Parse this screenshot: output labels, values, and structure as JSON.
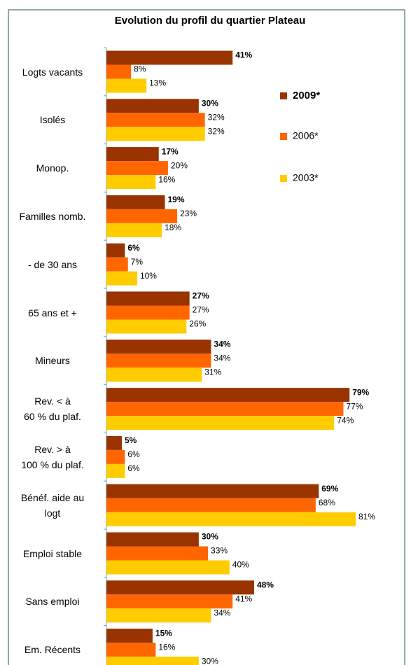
{
  "chart_data": {
    "type": "bar",
    "orientation": "horizontal",
    "title": "Evolution du profil du quartier Plateau",
    "categories": [
      "Logts vacants",
      "Isolés",
      "Monop.",
      "Familles nomb.",
      "- de 30 ans",
      "65 ans et +",
      "Mineurs",
      "Rev. < à\n60 % du plaf.",
      "Rev. > à\n100 % du plaf.",
      "Bénéf. aide au\nlogt",
      "Emploi stable",
      "Sans emploi",
      "Em. Récents"
    ],
    "series": [
      {
        "name": "2009*",
        "color": "#993300",
        "values": [
          41,
          30,
          17,
          19,
          6,
          27,
          34,
          79,
          5,
          69,
          30,
          48,
          15
        ],
        "value_labels": [
          "41%",
          "30%",
          "17%",
          "19%",
          "6%",
          "27%",
          "34%",
          "79%",
          "5%",
          "69%",
          "30%",
          "48%",
          "15%"
        ]
      },
      {
        "name": "2006*",
        "color": "#ff6600",
        "values": [
          8,
          32,
          20,
          23,
          7,
          27,
          34,
          77,
          6,
          68,
          33,
          41,
          16
        ],
        "value_labels": [
          "8%",
          "32%",
          "20%",
          "23%",
          "7%",
          "27%",
          "34%",
          "77%",
          "6%",
          "68%",
          "33%",
          "41%",
          "16%"
        ]
      },
      {
        "name": "2003*",
        "color": "#ffcc00",
        "values": [
          13,
          32,
          16,
          18,
          10,
          26,
          31,
          74,
          6,
          81,
          40,
          34,
          30
        ],
        "value_labels": [
          "13%",
          "32%",
          "16%",
          "18%",
          "10%",
          "26%",
          "31%",
          "74%",
          "6%",
          "81%",
          "40%",
          "34%",
          "30%"
        ]
      }
    ],
    "legend": "upper right"
  }
}
